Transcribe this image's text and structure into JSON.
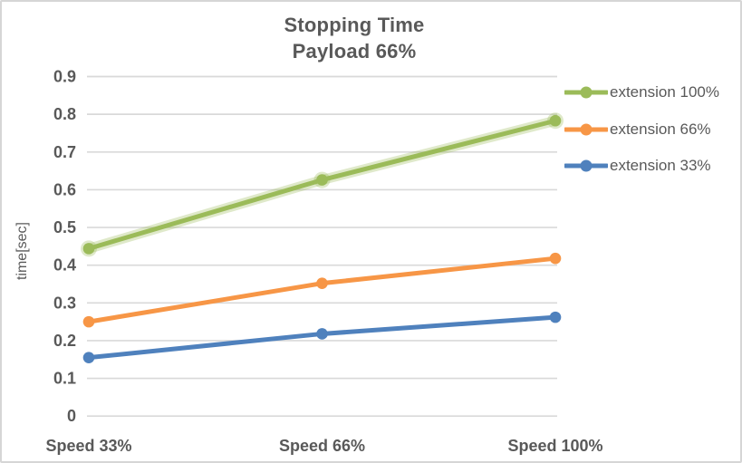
{
  "chart": {
    "title_line1": "Stopping Time",
    "title_line2": "Payload 66%"
  },
  "chart_data": {
    "type": "line",
    "title": "Stopping Time Payload 66%",
    "categories": [
      "Speed 33%",
      "Speed 66%",
      "Speed 100%"
    ],
    "series": [
      {
        "name": "extension 100%",
        "color": "#9BBB59",
        "values": [
          0.444,
          0.626,
          0.783
        ]
      },
      {
        "name": "extension 66%",
        "color": "#F79646",
        "values": [
          0.25,
          0.352,
          0.418
        ]
      },
      {
        "name": "extension 33%",
        "color": "#4F81BD",
        "values": [
          0.155,
          0.218,
          0.262
        ]
      }
    ],
    "xlabel": "",
    "ylabel": "time[sec]",
    "ylim": [
      0,
      0.9
    ],
    "y_ticks": [
      "0",
      "0.1",
      "0.2",
      "0.3",
      "0.4",
      "0.5",
      "0.6",
      "0.7",
      "0.8",
      "0.9"
    ],
    "grid": true,
    "legend_position": "right"
  },
  "colors": {
    "text": "#595959",
    "gridline": "#D9D9D9",
    "frame_border": "#D6D6D6",
    "background": "#FFFFFF"
  }
}
